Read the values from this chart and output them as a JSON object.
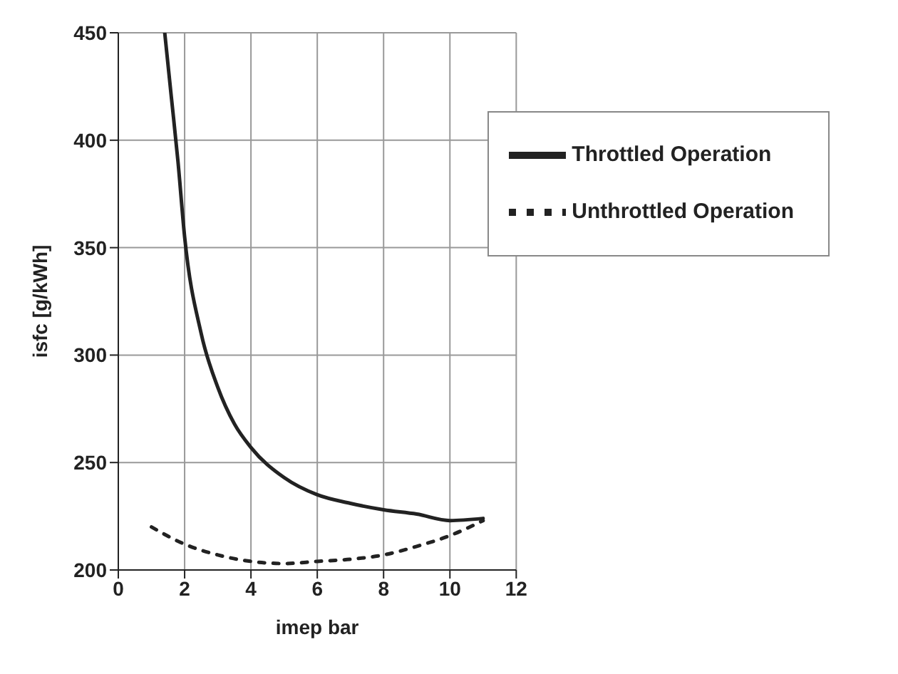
{
  "chart_data": {
    "type": "line",
    "xlabel": "imep bar",
    "ylabel": "isfc [g/kWh]",
    "xlim": [
      0,
      12
    ],
    "xticks": [
      0,
      2,
      4,
      6,
      8,
      10,
      12
    ],
    "ylim": [
      200,
      450
    ],
    "yticks": [
      200,
      250,
      300,
      350,
      400,
      450
    ],
    "grid": true,
    "legend": "top right",
    "marker": "none",
    "series": [
      {
        "name": "Throttled Operation",
        "color": "#222222",
        "line_style": "solid",
        "x": [
          1.4,
          1.6,
          1.8,
          2,
          2.5,
          3,
          3.5,
          4,
          5,
          6,
          7,
          8,
          9,
          10,
          11
        ],
        "values": [
          450,
          420,
          390,
          355,
          310,
          285,
          268,
          257,
          243,
          235,
          231,
          228,
          226,
          223,
          224
        ]
      },
      {
        "name": "Unthrottled Operation",
        "color": "#222222",
        "line_style": "dotted",
        "x": [
          1,
          2,
          3,
          4,
          5,
          6,
          7,
          8,
          9,
          10,
          11
        ],
        "values": [
          220,
          212,
          207,
          204,
          203,
          204,
          205,
          207,
          211,
          216,
          223
        ]
      }
    ]
  }
}
